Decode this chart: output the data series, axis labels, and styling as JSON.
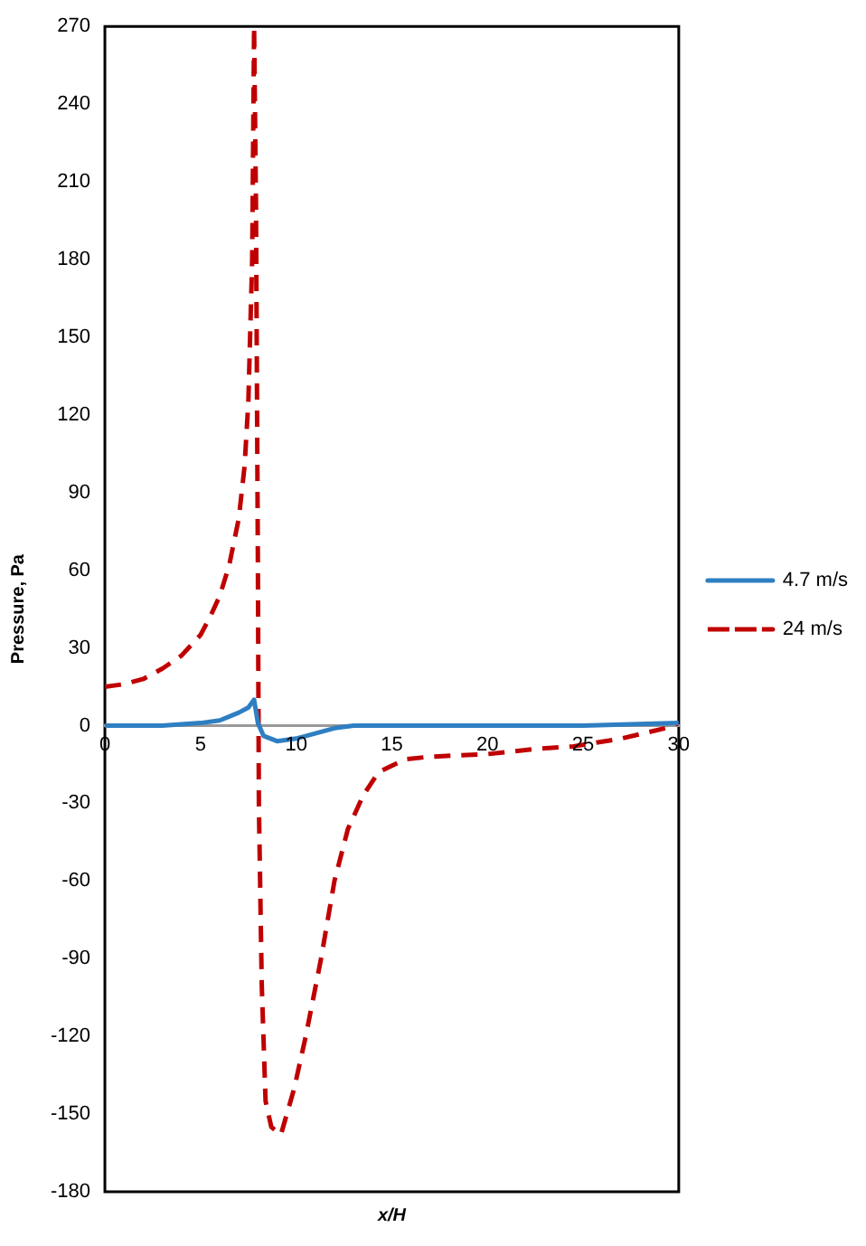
{
  "chart_data": {
    "type": "line",
    "xlabel": "x/H",
    "ylabel": "Pressure, Pa",
    "xlim": [
      0,
      30
    ],
    "xticks": [
      0,
      5,
      10,
      15,
      20,
      25,
      30
    ],
    "ylim": [
      -180,
      270
    ],
    "yticks": [
      -180,
      -150,
      -120,
      -90,
      -60,
      -30,
      0,
      30,
      60,
      90,
      120,
      150,
      180,
      210,
      240,
      270
    ],
    "grid": false,
    "legend": "right",
    "marker": "none",
    "series": [
      {
        "name": "4.7 m/s",
        "color": "#2e7fc2",
        "line_style": "solid",
        "x": [
          0,
          3,
          5,
          6,
          7,
          7.5,
          7.8,
          8,
          8.3,
          9,
          10,
          11,
          12,
          13,
          15,
          20,
          25,
          30
        ],
        "values": [
          0,
          0,
          1,
          2,
          5,
          7,
          10,
          1,
          -4,
          -6,
          -5,
          -3,
          -1,
          0,
          0,
          0,
          0,
          1
        ]
      },
      {
        "name": "24 m/s",
        "color": "#c00000",
        "line_style": "dashed",
        "x": [
          0,
          1,
          2,
          3,
          4,
          5,
          5.5,
          6,
          6.5,
          7,
          7.3,
          7.5,
          7.7,
          7.8,
          7.9,
          8,
          8.05,
          8.2,
          8.4,
          8.7,
          9.2,
          9.9,
          10.5,
          11.3,
          12,
          12.7,
          13.5,
          14.3,
          15.7,
          17,
          20,
          22.5,
          24.5,
          27,
          29.3,
          30
        ],
        "values": [
          15,
          16,
          18,
          22,
          27,
          35,
          42,
          50,
          62,
          80,
          100,
          125,
          180,
          270,
          200,
          60,
          -30,
          -100,
          -145,
          -155,
          -158,
          -140,
          -120,
          -90,
          -60,
          -40,
          -27,
          -18,
          -13,
          -12,
          -11,
          -9,
          -8,
          -5,
          -1,
          1
        ]
      }
    ]
  }
}
